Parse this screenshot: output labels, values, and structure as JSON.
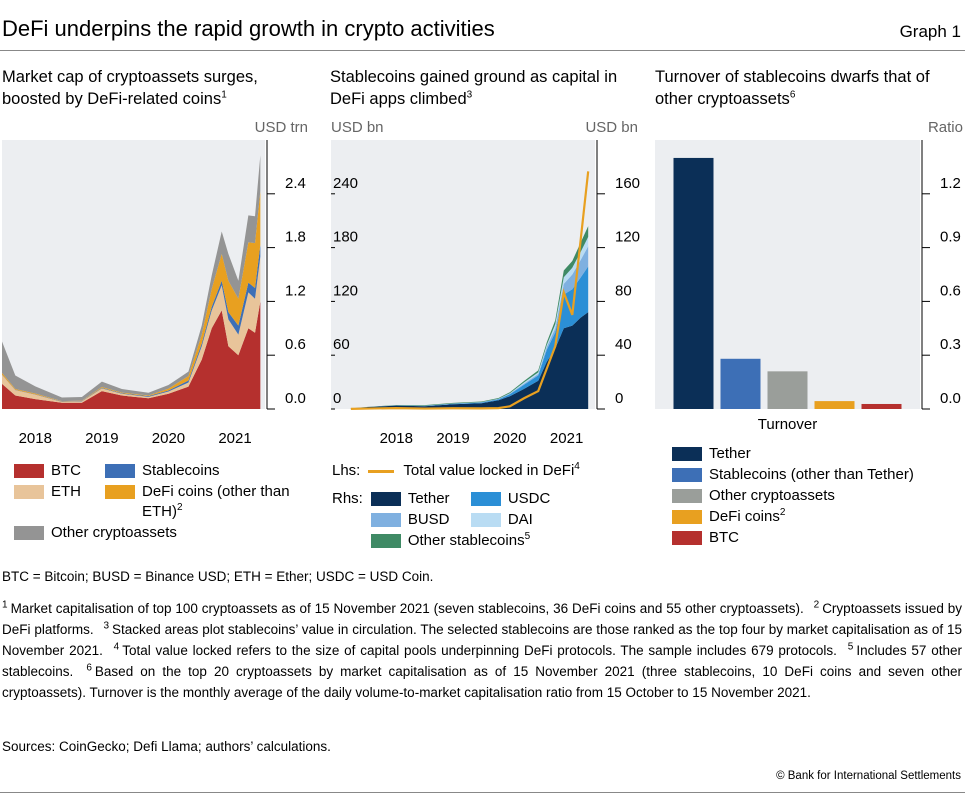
{
  "header": {
    "title": "DeFi underpins the rapid growth in crypto activities",
    "graph_label": "Graph 1"
  },
  "chart_data": [
    {
      "type": "area",
      "stacked": true,
      "title": "Market cap of cryptoassets surges, boosted by DeFi-related coins",
      "title_note": "1",
      "y_unit": "USD trn",
      "x": [
        2018.0,
        2018.2,
        2018.5,
        2018.9,
        2019.2,
        2019.5,
        2019.8,
        2020.2,
        2020.5,
        2020.8,
        2021.0,
        2021.15,
        2021.3,
        2021.4,
        2021.55,
        2021.7,
        2021.8,
        2021.88
      ],
      "xlim": [
        2018.0,
        2021.95
      ],
      "xticks": [
        {
          "value": 2018.5,
          "label": "2018"
        },
        {
          "value": 2019.5,
          "label": "2019"
        },
        {
          "value": 2020.5,
          "label": "2020"
        },
        {
          "value": 2021.5,
          "label": "2021"
        }
      ],
      "ylim": [
        0,
        3
      ],
      "yticks": [
        {
          "value": 0,
          "label": "0.0"
        },
        0.6,
        1.2,
        1.8,
        2.4
      ],
      "series": [
        {
          "name": "BTC",
          "color": "#b5302e",
          "values": [
            0.28,
            0.15,
            0.11,
            0.07,
            0.07,
            0.2,
            0.15,
            0.12,
            0.17,
            0.25,
            0.55,
            0.9,
            1.1,
            0.7,
            0.6,
            0.9,
            0.85,
            1.2
          ]
        },
        {
          "name": "ETH",
          "color": "#e8c49a",
          "values": [
            0.1,
            0.06,
            0.05,
            0.01,
            0.015,
            0.03,
            0.02,
            0.015,
            0.025,
            0.045,
            0.15,
            0.2,
            0.28,
            0.3,
            0.23,
            0.4,
            0.38,
            0.5
          ]
        },
        {
          "name": "Stablecoins",
          "color": "#3d6fb6",
          "values": [
            0.003,
            0.003,
            0.003,
            0.003,
            0.004,
            0.005,
            0.005,
            0.008,
            0.012,
            0.022,
            0.03,
            0.04,
            0.05,
            0.08,
            0.1,
            0.11,
            0.12,
            0.13
          ]
        },
        {
          "name": "DeFi coins (other than ETH)",
          "note": "2",
          "color": "#e8a020",
          "values": [
            0.02,
            0.01,
            0.01,
            0.005,
            0.005,
            0.01,
            0.008,
            0.008,
            0.02,
            0.05,
            0.1,
            0.2,
            0.3,
            0.35,
            0.3,
            0.45,
            0.5,
            0.6
          ]
        },
        {
          "name": "Other cryptoassets",
          "color": "#949494",
          "values": [
            0.35,
            0.15,
            0.08,
            0.04,
            0.04,
            0.06,
            0.04,
            0.03,
            0.04,
            0.05,
            0.1,
            0.15,
            0.25,
            0.3,
            0.2,
            0.3,
            0.3,
            0.4
          ]
        }
      ]
    },
    {
      "type": "combo",
      "title": "Stablecoins gained ground as capital in DeFi apps climbed",
      "title_note": "3",
      "y_unit": "USD bn",
      "y2_unit": "USD bn",
      "lhs_label": "Lhs:",
      "rhs_label": "Rhs:",
      "x": [
        2017.7,
        2018.0,
        2018.5,
        2019.0,
        2019.5,
        2020.0,
        2020.3,
        2020.5,
        2020.75,
        2021.0,
        2021.15,
        2021.3,
        2021.45,
        2021.6,
        2021.75,
        2021.88
      ],
      "xlim": [
        2017.35,
        2022.0
      ],
      "xticks": [
        {
          "value": 2018.5,
          "label": "2018"
        },
        {
          "value": 2019.5,
          "label": "2019"
        },
        {
          "value": 2020.5,
          "label": "2020"
        },
        {
          "value": 2021.5,
          "label": "2021"
        }
      ],
      "ylim": [
        0,
        300
      ],
      "yticks": [
        0,
        60,
        120,
        180,
        240
      ],
      "y2lim": [
        0,
        200
      ],
      "y2ticks": [
        0,
        40,
        80,
        120,
        160
      ],
      "series": [
        {
          "name": "Total value locked in DeFi",
          "note": "4",
          "type": "line",
          "axis": "y",
          "color": "#e8a020",
          "values": [
            0.1,
            0.5,
            1,
            0.5,
            0.8,
            0.7,
            1,
            3,
            12,
            20,
            45,
            70,
            130,
            105,
            190,
            265
          ]
        },
        {
          "name": "Tether",
          "type": "area",
          "axis": "y2",
          "color": "#0b2f57",
          "values": [
            0.5,
            1.5,
            2.5,
            2,
            3.5,
            4.3,
            6.5,
            9.5,
            15,
            21,
            35,
            45,
            60,
            62,
            68,
            72
          ]
        },
        {
          "name": "USDC",
          "type": "area",
          "axis": "y2",
          "color": "#2b8fd6",
          "values": [
            0,
            0,
            0.1,
            0.3,
            0.4,
            0.5,
            0.7,
            1.5,
            3,
            4,
            9,
            12,
            25,
            27,
            30,
            34
          ]
        },
        {
          "name": "BUSD",
          "type": "area",
          "axis": "y2",
          "color": "#7fb0e0",
          "values": [
            0,
            0,
            0,
            0,
            0.1,
            0.2,
            0.3,
            0.4,
            0.8,
            1,
            2,
            3,
            8,
            11,
            13,
            15
          ]
        },
        {
          "name": "DAI",
          "type": "area",
          "axis": "y2",
          "color": "#b9dcf3",
          "values": [
            0,
            0,
            0.05,
            0.1,
            0.1,
            0.1,
            0.1,
            0.3,
            1,
            1.2,
            1.5,
            3,
            5,
            5,
            6,
            7
          ]
        },
        {
          "name": "Other stablecoins",
          "note": "5",
          "type": "area",
          "axis": "y2",
          "color": "#3f8a65",
          "values": [
            0,
            0.1,
            0.3,
            0.5,
            0.5,
            0.5,
            0.6,
            0.8,
            1,
            1.5,
            2,
            3,
            5,
            5,
            7,
            8
          ]
        }
      ]
    },
    {
      "type": "bar",
      "title": "Turnover of stablecoins dwarfs that of other cryptoassets",
      "title_note": "6",
      "y_unit": "Ratio",
      "categories": [
        "Turnover"
      ],
      "ylim": [
        0,
        1.5
      ],
      "yticks": [
        {
          "value": 0,
          "label": "0.0"
        },
        0.3,
        0.6,
        0.9,
        1.2
      ],
      "series": [
        {
          "name": "Tether",
          "color": "#0b2f57",
          "values": [
            1.4
          ]
        },
        {
          "name": "Stablecoins (other than Tether)",
          "color": "#3d6fb6",
          "values": [
            0.28
          ]
        },
        {
          "name": "Other cryptoassets",
          "color": "#9a9e9a",
          "values": [
            0.21
          ]
        },
        {
          "name": "DeFi coins",
          "note": "2",
          "color": "#e8a020",
          "values": [
            0.044
          ]
        },
        {
          "name": "BTC",
          "color": "#b5302e",
          "values": [
            0.028
          ]
        }
      ]
    }
  ],
  "abbreviations": "BTC = Bitcoin; BUSD = Binance USD; ETH = Ether; USDC = USD Coin.",
  "notes": [
    {
      "mark": "1",
      "text": "Market capitalisation of top 100 cryptoassets as of 15 November 2021 (seven stablecoins, 36 DeFi coins and 55 other cryptoassets)."
    },
    {
      "mark": "2",
      "text": "Cryptoassets issued by DeFi platforms."
    },
    {
      "mark": "3",
      "text": "Stacked areas plot stablecoins’ value in circulation. The selected stablecoins are those ranked as the top four by market capitalisation as of 15 November 2021."
    },
    {
      "mark": "4",
      "text": "Total value locked refers to the size of capital pools underpinning DeFi protocols. The sample includes 679 protocols."
    },
    {
      "mark": "5",
      "text": "Includes 57 other stablecoins."
    },
    {
      "mark": "6",
      "text": "Based on the top 20 cryptoassets by market capitalisation as of 15 November 2021 (three stablecoins, 10 DeFi coins and seven other cryptoassets). Turnover is the monthly average of the daily volume-to-market capitalisation ratio from 15 October to 15 November 2021."
    }
  ],
  "sources": "Sources: CoinGecko; Defi Llama; authors’ calculations.",
  "copyright": "© Bank for International Settlements"
}
